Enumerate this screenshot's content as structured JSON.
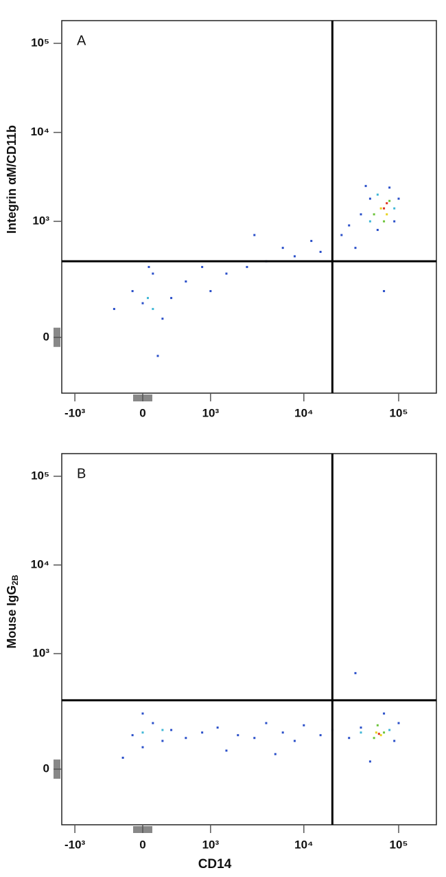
{
  "chart_data": [
    {
      "type": "scatter",
      "panel_label": "A",
      "y_label": "Integrin αM/CD11b",
      "xscale": "biexponential",
      "yscale": "biexponential",
      "xlim": [
        -1400,
        250000
      ],
      "ylim": [
        -200,
        180000
      ],
      "xticks": [
        {
          "value": -1000,
          "label": "-10³"
        },
        0,
        {
          "value": 1000,
          "label": "10³"
        },
        {
          "value": 10000,
          "label": "10⁴"
        },
        {
          "value": 100000,
          "label": "10⁵"
        }
      ],
      "yticks": [
        0,
        {
          "value": 1000,
          "label": "10³"
        },
        {
          "value": 10000,
          "label": "10⁴"
        },
        {
          "value": 100000,
          "label": "10⁵"
        }
      ],
      "gates": {
        "x": 20000,
        "y": 350
      },
      "series": [
        {
          "color": "#2a4fc9",
          "x": [
            0,
            200,
            -100,
            100,
            300,
            500,
            800,
            1500,
            2500,
            4000,
            6000,
            8000,
            12000,
            15000,
            25000,
            30000,
            35000,
            40000,
            50000,
            60000,
            90000,
            100000,
            45000,
            80000,
            70000,
            3000,
            1000,
            -300,
            150,
            60
          ],
          "values": [
            100,
            50,
            150,
            250,
            120,
            200,
            300,
            250,
            300,
            350,
            500,
            400,
            600,
            450,
            700,
            900,
            500,
            1200,
            1800,
            800,
            1000,
            1800,
            2500,
            2400,
            150,
            700,
            150,
            80,
            -50,
            300
          ]
        },
        {
          "color": "#3fb7d6",
          "x": [
            50,
            100,
            50000,
            90000,
            60000
          ],
          "values": [
            120,
            80,
            1000,
            1400,
            2000
          ]
        },
        {
          "color": "#6cc43a",
          "x": [
            55000,
            80000,
            70000
          ],
          "values": [
            1200,
            1700,
            1000
          ]
        },
        {
          "color": "#e8d21e",
          "x": [
            65000,
            75000
          ],
          "values": [
            1400,
            1200
          ]
        },
        {
          "color": "#e0321e",
          "x": [
            70000,
            75000
          ],
          "values": [
            1400,
            1600
          ]
        }
      ]
    },
    {
      "type": "scatter",
      "panel_label": "B",
      "y_label": "Mouse IgG",
      "y_label_subscript": "2B",
      "x_label": "CD14",
      "xscale": "biexponential",
      "yscale": "biexponential",
      "xlim": [
        -1400,
        250000
      ],
      "ylim": [
        -200,
        180000
      ],
      "xticks": [
        {
          "value": -1000,
          "label": "-10³"
        },
        0,
        {
          "value": 1000,
          "label": "10³"
        },
        {
          "value": 10000,
          "label": "10⁴"
        },
        {
          "value": 100000,
          "label": "10⁵"
        }
      ],
      "yticks": [
        0,
        {
          "value": 1000,
          "label": "10³"
        },
        {
          "value": 10000,
          "label": "10⁴"
        },
        {
          "value": 100000,
          "label": "10⁵"
        }
      ],
      "gates": {
        "x": 20000,
        "y": 290
      },
      "series": [
        {
          "color": "#2a4fc9",
          "x": [
            -100,
            0,
            100,
            200,
            300,
            500,
            800,
            1200,
            2000,
            3000,
            4000,
            6000,
            8000,
            10000,
            15000,
            20000,
            30000,
            40000,
            90000,
            100000,
            50000,
            70000,
            0,
            5000,
            35000,
            1500,
            -200
          ],
          "values": [
            100,
            60,
            150,
            80,
            120,
            90,
            110,
            130,
            100,
            90,
            150,
            110,
            80,
            140,
            100,
            120,
            90,
            130,
            80,
            150,
            20,
            200,
            200,
            40,
            600,
            50,
            30
          ]
        },
        {
          "color": "#3fb7d6",
          "x": [
            0,
            200,
            40000,
            80000
          ],
          "values": [
            110,
            120,
            110,
            120
          ]
        },
        {
          "color": "#6cc43a",
          "x": [
            55000,
            70000,
            60000
          ],
          "values": [
            90,
            110,
            140
          ]
        },
        {
          "color": "#e8d21e",
          "x": [
            65000,
            58000
          ],
          "values": [
            100,
            110
          ]
        },
        {
          "color": "#e0321e",
          "x": [
            62000
          ],
          "values": [
            105
          ]
        }
      ]
    }
  ]
}
